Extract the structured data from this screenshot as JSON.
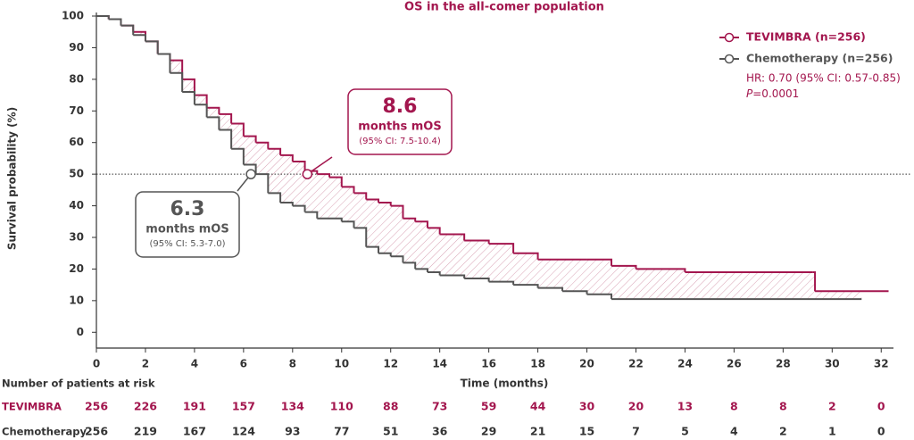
{
  "chart_data": {
    "type": "line",
    "step": true,
    "title": "OS in the all-comer population",
    "x_label": "Time (months)",
    "y_label": "Survival probability (%)",
    "xlim": [
      0,
      32.5
    ],
    "ylim": [
      -5,
      100
    ],
    "xticks": [
      0,
      2,
      4,
      6,
      8,
      10,
      12,
      14,
      16,
      18,
      20,
      22,
      24,
      26,
      28,
      30,
      32
    ],
    "yticks": [
      0,
      10,
      20,
      30,
      40,
      50,
      60,
      70,
      80,
      90,
      100
    ],
    "reference_line": 50,
    "series": [
      {
        "name": "TEVIMBRA (n=256)",
        "color": "#a3164e",
        "x": [
          0,
          0.5,
          1,
          1.5,
          2,
          2.5,
          3,
          3.5,
          4,
          4.5,
          5,
          5.5,
          6,
          6.5,
          7,
          7.5,
          8,
          8.5,
          9,
          9.5,
          10,
          10.5,
          11,
          11.5,
          12,
          12.5,
          13,
          13.5,
          14,
          15,
          16,
          17,
          18,
          20,
          21,
          22,
          24,
          29.2,
          29.3,
          32.3
        ],
        "values": [
          100,
          99,
          97,
          95,
          92,
          88,
          86,
          80,
          75,
          71,
          69,
          66,
          62,
          60,
          58,
          56,
          54,
          51,
          50,
          49,
          46,
          44,
          42,
          41,
          40,
          36,
          35,
          33,
          31,
          29,
          28,
          25,
          23,
          23,
          21,
          20,
          19,
          19,
          13,
          13
        ]
      },
      {
        "name": "Chemotherapy (n=256)",
        "color": "#555555",
        "x": [
          0,
          0.5,
          1,
          1.5,
          2,
          2.5,
          3,
          3.5,
          4,
          4.5,
          5,
          5.5,
          6,
          6.5,
          7,
          7.5,
          8,
          8.5,
          9,
          10,
          10.5,
          11,
          11.5,
          12,
          12.5,
          13,
          13.5,
          14,
          15,
          16,
          17,
          18,
          19,
          20,
          21,
          31.2
        ],
        "values": [
          100,
          99,
          97,
          94,
          92,
          88,
          82,
          76,
          72,
          68,
          64,
          58,
          53,
          50,
          44,
          41,
          40,
          38,
          36,
          35,
          33,
          27,
          25,
          24,
          22,
          20,
          19,
          18,
          17,
          16,
          15,
          14,
          13,
          12,
          10.5,
          10.5
        ]
      }
    ],
    "annotations": [
      {
        "median": 8.6,
        "text": "months mOS",
        "ci": "(95% CI: 7.5-10.4)",
        "color": "#a3164e"
      },
      {
        "median": 6.3,
        "text": "months mOS",
        "ci": "(95% CI: 5.3-7.0)",
        "color": "#555555"
      }
    ],
    "stats": {
      "hr": "HR: 0.70 (95% CI: 0.57-0.85)",
      "p_symbol": "P",
      "p_value": "=0.0001"
    },
    "risk_table": {
      "title": "Number of patients at risk",
      "rows": [
        {
          "name": "TEVIMBRA",
          "color": "#a3164e",
          "values": [
            256,
            226,
            191,
            157,
            134,
            110,
            88,
            73,
            59,
            44,
            30,
            20,
            13,
            8,
            8,
            2,
            0
          ]
        },
        {
          "name": "Chemotherapy",
          "color": "#333333",
          "values": [
            256,
            219,
            167,
            124,
            93,
            77,
            51,
            36,
            29,
            21,
            15,
            7,
            5,
            4,
            2,
            1,
            0
          ]
        }
      ]
    }
  }
}
